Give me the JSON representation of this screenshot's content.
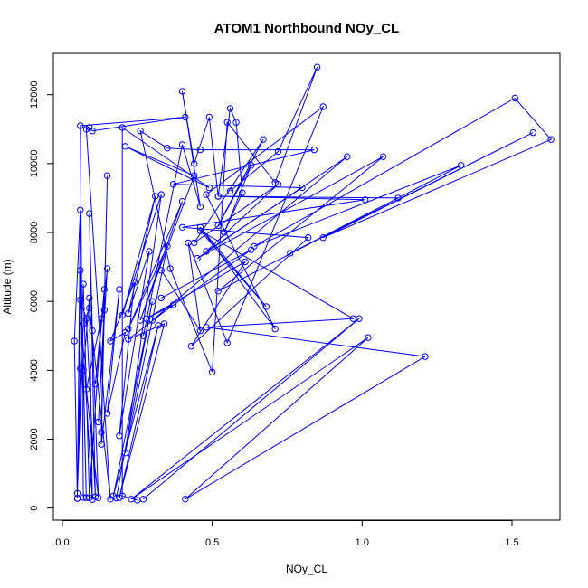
{
  "chart_data": {
    "type": "line",
    "title": "ATOM1 Northbound NOy_CL",
    "xlabel": "NOy_CL",
    "ylabel": "Altitude (m)",
    "xlim": [
      -0.03,
      1.66
    ],
    "ylim": [
      -350,
      13200
    ],
    "xticks": [
      "0.0",
      "0.5",
      "1.0",
      "1.5"
    ],
    "xtick_values": [
      0,
      0.5,
      1.0,
      1.5
    ],
    "yticks": [
      "0",
      "2000",
      "4000",
      "6000",
      "8000",
      "10000",
      "12000"
    ],
    "ytick_values": [
      0,
      2000,
      4000,
      6000,
      8000,
      10000,
      12000
    ],
    "grid": false,
    "markers": "open circles",
    "color": "#0000ff",
    "series": [
      {
        "points": [
          [
            0.05,
            280
          ],
          [
            0.04,
            4850
          ],
          [
            0.06,
            8650
          ],
          [
            0.05,
            280
          ],
          [
            0.06,
            6900
          ],
          [
            0.08,
            300
          ],
          [
            0.07,
            4000
          ],
          [
            0.09,
            6100
          ],
          [
            0.1,
            250
          ],
          [
            0.06,
            6050
          ],
          [
            0.08,
            5500
          ],
          [
            0.11,
            330
          ],
          [
            0.09,
            8550
          ],
          [
            0.1,
            5150
          ],
          [
            0.12,
            300
          ],
          [
            0.08,
            3450
          ],
          [
            0.13,
            5500
          ],
          [
            0.09,
            300
          ],
          [
            0.07,
            6500
          ],
          [
            0.06,
            4050
          ],
          [
            0.05,
            430
          ],
          [
            0.07,
            5350
          ],
          [
            0.09,
            5800
          ],
          [
            0.16,
            260
          ],
          [
            0.08,
            11000
          ],
          [
            0.09,
            11050
          ],
          [
            0.1,
            10950
          ],
          [
            0.41,
            11350
          ],
          [
            0.06,
            11100
          ],
          [
            0.07,
            310
          ]
        ]
      },
      {
        "points": [
          [
            0.14,
            5750
          ],
          [
            0.12,
            2500
          ],
          [
            0.15,
            6950
          ],
          [
            0.11,
            3600
          ],
          [
            0.14,
            6350
          ],
          [
            0.13,
            2200
          ],
          [
            0.15,
            9650
          ],
          [
            0.13,
            1850
          ],
          [
            0.19,
            6350
          ],
          [
            0.15,
            2750
          ],
          [
            0.21,
            5100
          ],
          [
            0.16,
            4850
          ],
          [
            0.24,
            6550
          ],
          [
            0.19,
            2100
          ],
          [
            0.29,
            7450
          ],
          [
            0.22,
            5650
          ],
          [
            0.31,
            9050
          ],
          [
            0.2,
            5600
          ],
          [
            0.33,
            9100
          ],
          [
            0.21,
            1600
          ],
          [
            0.35,
            7600
          ],
          [
            0.22,
            5200
          ],
          [
            0.4,
            8900
          ],
          [
            0.26,
            5450
          ],
          [
            0.44,
            9650
          ],
          [
            0.21,
            10500
          ],
          [
            0.49,
            9300
          ],
          [
            0.2,
            11050
          ],
          [
            0.2,
            350
          ],
          [
            0.25,
            230
          ]
        ]
      },
      {
        "points": [
          [
            0.27,
            5000
          ],
          [
            0.4,
            10550
          ],
          [
            0.46,
            8750
          ],
          [
            0.4,
            12100
          ],
          [
            0.44,
            10000
          ],
          [
            0.49,
            11350
          ],
          [
            0.52,
            9050
          ],
          [
            0.56,
            11600
          ],
          [
            0.58,
            11200
          ],
          [
            0.6,
            9150
          ],
          [
            0.54,
            8000
          ],
          [
            0.63,
            9950
          ],
          [
            0.52,
            8200
          ],
          [
            0.67,
            10700
          ],
          [
            0.44,
            7700
          ],
          [
            0.72,
            9400
          ],
          [
            0.48,
            7450
          ],
          [
            0.8,
            9300
          ],
          [
            0.37,
            9400
          ],
          [
            0.84,
            10400
          ],
          [
            0.46,
            10400
          ],
          [
            0.35,
            10450
          ],
          [
            0.26,
            10950
          ],
          [
            0.36,
            6950
          ],
          [
            0.5,
            3950
          ],
          [
            0.55,
            11200
          ],
          [
            0.71,
            9450
          ],
          [
            0.85,
            12800
          ],
          [
            0.72,
            10350
          ],
          [
            0.56,
            9200
          ]
        ]
      },
      {
        "points": [
          [
            0.33,
            6100
          ],
          [
            0.63,
            7500
          ],
          [
            0.3,
            5450
          ],
          [
            0.95,
            10200
          ],
          [
            0.45,
            7250
          ],
          [
            1.07,
            10200
          ],
          [
            0.52,
            6300
          ],
          [
            1.33,
            9950
          ],
          [
            0.64,
            7600
          ],
          [
            1.51,
            11900
          ],
          [
            1.63,
            10700
          ],
          [
            0.87,
            7850
          ],
          [
            1.57,
            10900
          ],
          [
            0.76,
            7400
          ],
          [
            1.12,
            9000
          ],
          [
            0.52,
            9050
          ],
          [
            1.01,
            8950
          ],
          [
            0.4,
            8150
          ],
          [
            0.82,
            7850
          ],
          [
            0.43,
            4700
          ],
          [
            0.61,
            7150
          ],
          [
            0.28,
            5500
          ],
          [
            0.37,
            5900
          ],
          [
            0.22,
            4900
          ],
          [
            0.34,
            5350
          ],
          [
            0.19,
            300
          ],
          [
            0.32,
            5300
          ],
          [
            0.17,
            350
          ],
          [
            0.3,
            6000
          ],
          [
            0.18,
            290
          ]
        ]
      },
      {
        "points": [
          [
            0.27,
            260
          ],
          [
            0.99,
            5500
          ],
          [
            0.23,
            260
          ],
          [
            1.02,
            4950
          ],
          [
            0.41,
            260
          ],
          [
            1.21,
            4400
          ],
          [
            0.48,
            5250
          ],
          [
            0.97,
            5500
          ],
          [
            0.46,
            8050
          ],
          [
            0.68,
            5850
          ],
          [
            0.46,
            8150
          ],
          [
            0.71,
            5200
          ],
          [
            0.48,
            9100
          ],
          [
            0.87,
            11650
          ],
          [
            0.55,
            4800
          ],
          [
            0.42,
            7700
          ],
          [
            0.46,
            5150
          ],
          [
            0.33,
            6900
          ]
        ]
      }
    ]
  }
}
